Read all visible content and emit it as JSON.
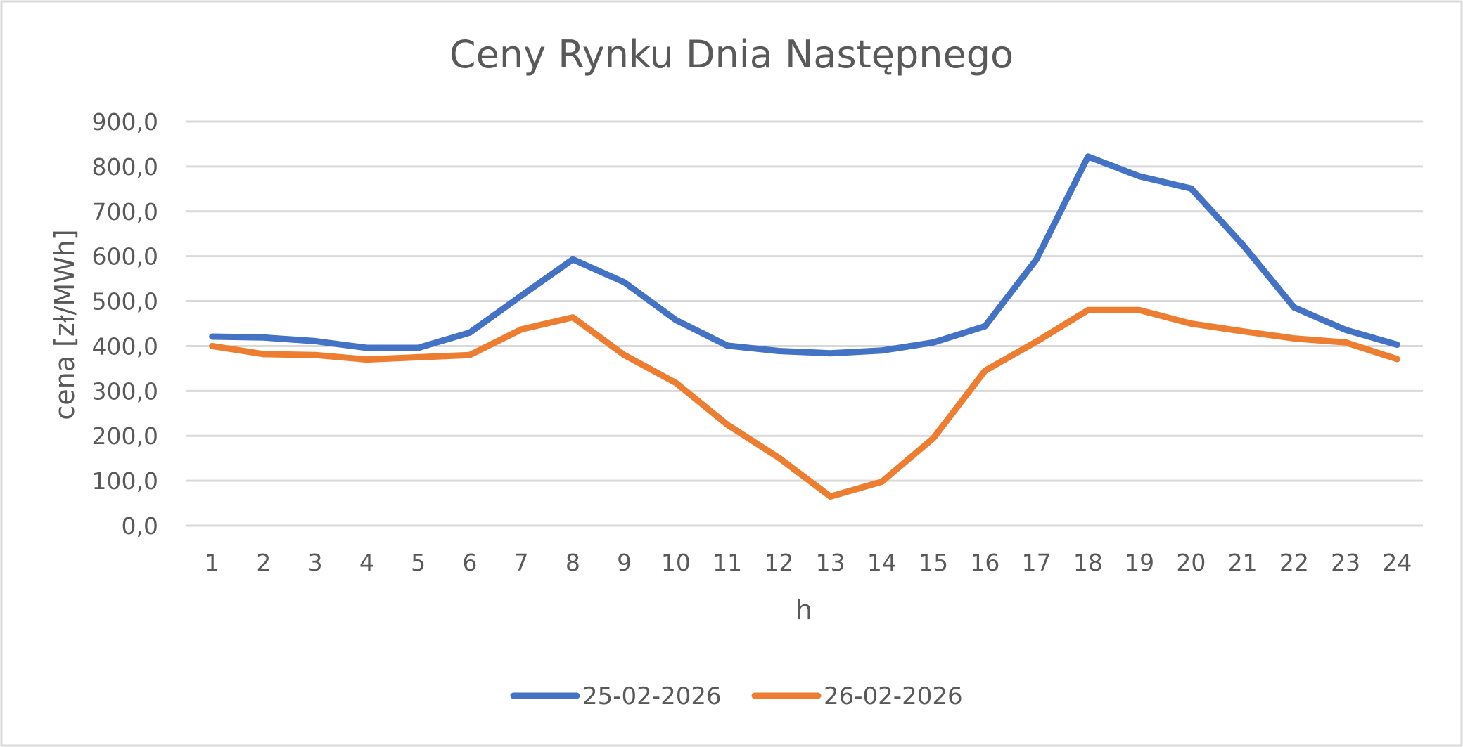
{
  "chart_data": {
    "type": "line",
    "title": "Ceny Rynku Dnia Następnego",
    "xlabel": "h",
    "ylabel": "cena [zł/MWh]",
    "ylim": [
      0,
      900
    ],
    "yticks": [
      "0,0",
      "100,0",
      "200,0",
      "300,0",
      "400,0",
      "500,0",
      "600,0",
      "700,0",
      "800,0",
      "900,0"
    ],
    "categories": [
      "1",
      "2",
      "3",
      "4",
      "5",
      "6",
      "7",
      "8",
      "9",
      "10",
      "11",
      "12",
      "13",
      "14",
      "15",
      "16",
      "17",
      "18",
      "19",
      "20",
      "21",
      "22",
      "23",
      "24"
    ],
    "grid": true,
    "legend_position": "bottom",
    "series": [
      {
        "name": "25-02-2026",
        "color": "#4472c4",
        "values": [
          421,
          419,
          411,
          396,
          396,
          430,
          512,
          593,
          542,
          458,
          401,
          389,
          384,
          390,
          408,
          444,
          593,
          822,
          778,
          751,
          626,
          486,
          436,
          403
        ]
      },
      {
        "name": "26-02-2026",
        "color": "#ed7d31",
        "values": [
          400,
          382,
          380,
          370,
          375,
          380,
          437,
          464,
          380,
          318,
          225,
          151,
          65,
          98,
          195,
          345,
          410,
          480,
          480,
          450,
          433,
          417,
          408,
          371
        ]
      }
    ]
  }
}
